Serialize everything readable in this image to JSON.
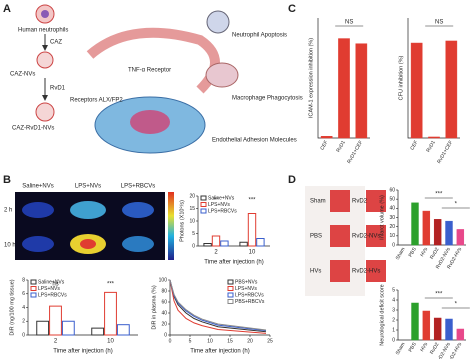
{
  "panel_labels": [
    "A",
    "B",
    "C",
    "D"
  ],
  "schematic": {
    "steps": [
      "Human neutrophils",
      "CAZ",
      "CAZ-NVs",
      "RvD1",
      "CAZ-RvD1-NVs"
    ],
    "receptors": "Receptors ALX/FP2",
    "tnf": "TNF-α Receptor",
    "effects": [
      "Neutrophil Apoptosis",
      "Macrophage Phagocytosis",
      "Endothelial Adhesion Molecules"
    ]
  },
  "imaging": {
    "columns": [
      "Saline+NVs",
      "LPS+NVs",
      "LPS+RBCVs"
    ],
    "rows": [
      "2 h",
      "10 h"
    ]
  },
  "brains": {
    "left": [
      "Sham",
      "PBS",
      "HVs"
    ],
    "right": [
      "RvD2",
      "RvD2-NVs",
      "RvD2-HVs"
    ]
  },
  "chart_data": [
    {
      "type": "bar",
      "ylabel": "ICAM-1 expression inhibition (%)",
      "categories": [
        "CEF",
        "RvD1",
        "RvD1+CEF"
      ],
      "values": [
        1,
        58,
        55
      ],
      "color": "#e03c31",
      "ylim": [
        0,
        70
      ],
      "annotations": [
        "NS"
      ]
    },
    {
      "type": "bar",
      "ylabel": "CFU inhibition (%)",
      "categories": [
        "CEF",
        "RvD1",
        "RvD1+CEF"
      ],
      "values": [
        91,
        1,
        93
      ],
      "color": "#e03c31",
      "ylim": [
        0,
        115
      ],
      "annotations": [
        "NS"
      ]
    },
    {
      "type": "bar",
      "ylabel": "Photons (X10⁹/s)",
      "xlabel": "Time after injection (h)",
      "categories": [
        "2",
        "10"
      ],
      "ylim": [
        0,
        20
      ],
      "yticks": [
        0,
        5,
        10,
        15,
        20
      ],
      "series": [
        {
          "name": "Saline+NVs",
          "color": "#333333",
          "values": [
            1,
            1.5
          ]
        },
        {
          "name": "LPS+NVs",
          "color": "#e03c31",
          "values": [
            4,
            13
          ]
        },
        {
          "name": "LPS+RBCVs",
          "color": "#3a5fcd",
          "values": [
            2,
            3
          ]
        }
      ],
      "annotations": [
        "**",
        "***"
      ]
    },
    {
      "type": "bar",
      "ylabel": "DiR (ng/100 mg tissue)",
      "xlabel": "Time after injection (h)",
      "categories": [
        "2",
        "10"
      ],
      "ylim": [
        0,
        8
      ],
      "yticks": [
        0,
        2,
        4,
        6,
        8
      ],
      "series": [
        {
          "name": "Saline+NVs",
          "color": "#333333",
          "values": [
            2,
            1
          ]
        },
        {
          "name": "LPS+NVs",
          "color": "#e03c31",
          "values": [
            4.2,
            6.2
          ]
        },
        {
          "name": "LPS+RBCVs",
          "color": "#3a5fcd",
          "values": [
            2,
            1.5
          ]
        }
      ],
      "annotations": [
        "ns",
        "***"
      ]
    },
    {
      "type": "line",
      "ylabel": "DiR in plasma (%)",
      "xlabel": "Time after injection (h)",
      "x": [
        0,
        1,
        2,
        4,
        6,
        8,
        12,
        24
      ],
      "xlim": [
        0,
        25
      ],
      "xticks": [
        0,
        5,
        10,
        15,
        20,
        25
      ],
      "ylim": [
        0,
        100
      ],
      "yticks": [
        0,
        20,
        40,
        60,
        80,
        100
      ],
      "series": [
        {
          "name": "PBS+NVs",
          "color": "#333333",
          "values": [
            100,
            70,
            55,
            40,
            30,
            24,
            15,
            6
          ]
        },
        {
          "name": "LPS+NVs",
          "color": "#e03c31",
          "values": [
            100,
            62,
            45,
            30,
            22,
            17,
            10,
            3
          ]
        },
        {
          "name": "LPS+RBCVs",
          "color": "#3a5fcd",
          "values": [
            100,
            72,
            58,
            44,
            34,
            27,
            18,
            8
          ]
        },
        {
          "name": "PBS+RBCVs",
          "color": "#8a8a8a",
          "values": [
            100,
            74,
            60,
            46,
            36,
            29,
            20,
            9
          ]
        }
      ]
    },
    {
      "type": "bar",
      "ylabel": "Infarct volume (%)",
      "categories": [
        "Sham",
        "PBS",
        "HVs",
        "RvD2",
        "RvD2-NVs",
        "RvD2-HVs"
      ],
      "values": [
        0,
        46,
        37,
        28,
        26,
        17
      ],
      "colors": [
        "#ffffff",
        "#2ca02c",
        "#e03c31",
        "#b22222",
        "#3a5fcd",
        "#e8488a"
      ],
      "ylim": [
        0,
        60
      ],
      "yticks": [
        0,
        10,
        20,
        30,
        40,
        50,
        60
      ],
      "annotations": [
        "***",
        "*"
      ]
    },
    {
      "type": "bar",
      "ylabel": "Neurological deficit score",
      "categories": [
        "Sham",
        "PBS",
        "HVs",
        "RvD2",
        "RvD2-NVs",
        "RvD2-HVs"
      ],
      "values": [
        0,
        3.7,
        2.9,
        2.2,
        2.1,
        1.1
      ],
      "colors": [
        "#ffffff",
        "#2ca02c",
        "#e03c31",
        "#b22222",
        "#3a5fcd",
        "#e8488a"
      ],
      "ylim": [
        0,
        5
      ],
      "yticks": [
        0,
        1,
        2,
        3,
        4,
        5
      ],
      "annotations": [
        "***",
        "*"
      ]
    }
  ]
}
